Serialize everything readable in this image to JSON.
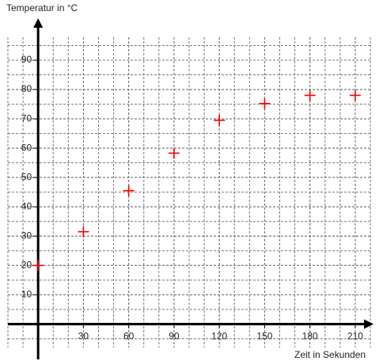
{
  "chart_data": {
    "type": "scatter",
    "y_label": "Temperatur in °C",
    "x_label": "Zeit in Sekunden",
    "x": [
      0,
      30,
      60,
      90,
      120,
      150,
      180,
      210
    ],
    "values": [
      20,
      31.5,
      45.5,
      58.3,
      69.5,
      75.2,
      78,
      78
    ],
    "color": "#ff0000",
    "xlim": [
      -20,
      220
    ],
    "ylim": [
      -8,
      100
    ],
    "xticks": [
      30,
      60,
      90,
      120,
      150,
      180,
      210
    ],
    "yticks": [
      10,
      20,
      30,
      40,
      50,
      60,
      70,
      80,
      90
    ],
    "grid": true
  }
}
